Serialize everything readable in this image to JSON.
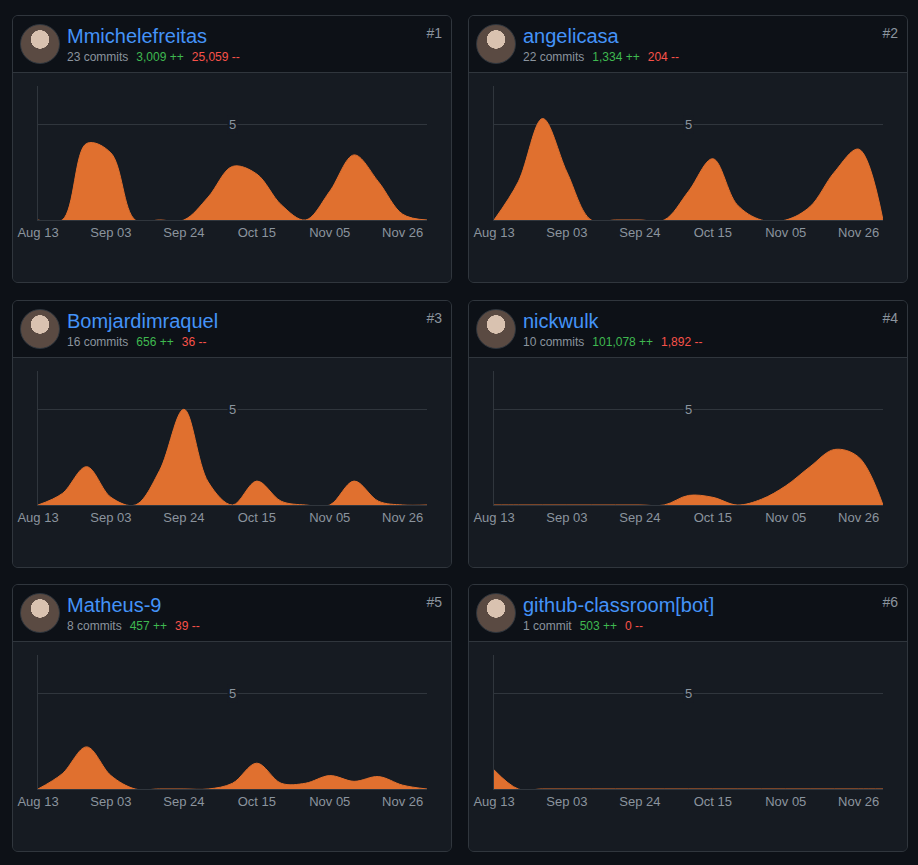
{
  "chart_data": [
    {
      "type": "area",
      "title": "Mmichelefreitas",
      "rank": "#1",
      "commits": "23 commits",
      "additions": "3,009 ++",
      "deletions": "25,059 --",
      "categories": [
        "Aug 13",
        null,
        null,
        "Sep 03",
        null,
        null,
        "Sep 24",
        null,
        null,
        "Oct 15",
        null,
        null,
        "Nov 05",
        null,
        null,
        "Nov 26",
        null
      ],
      "values": [
        0,
        0,
        4,
        3.5,
        0,
        0,
        0,
        1.2,
        2.8,
        2.4,
        0.8,
        0,
        1.5,
        3.4,
        2,
        0.3,
        0
      ],
      "color": "#e0702f",
      "ylim": [
        0,
        7
      ],
      "yticks": [
        5
      ],
      "grid": true
    },
    {
      "type": "area",
      "title": "angelicasa",
      "rank": "#2",
      "commits": "22 commits",
      "additions": "1,334 ++",
      "deletions": "204 --",
      "categories": [
        "Aug 13",
        null,
        null,
        "Sep 03",
        null,
        null,
        "Sep 24",
        null,
        null,
        "Oct 15",
        null,
        null,
        "Nov 05",
        null,
        null,
        "Nov 26",
        null
      ],
      "values": [
        0,
        2,
        5.3,
        2.5,
        0,
        0,
        0,
        0,
        1.5,
        3.2,
        0.8,
        0,
        0,
        0.7,
        2.5,
        3.7,
        0
      ],
      "color": "#e0702f",
      "ylim": [
        0,
        7
      ],
      "yticks": [
        5
      ],
      "grid": true
    },
    {
      "type": "area",
      "title": "Bomjardimraquel",
      "rank": "#3",
      "commits": "16 commits",
      "additions": "656 ++",
      "deletions": "36 --",
      "categories": [
        "Aug 13",
        null,
        null,
        "Sep 03",
        null,
        null,
        "Sep 24",
        null,
        null,
        "Oct 15",
        null,
        null,
        "Nov 05",
        null,
        null,
        "Nov 26",
        null
      ],
      "values": [
        0,
        0.6,
        2,
        0.4,
        0,
        1.8,
        5,
        1.2,
        0,
        1.25,
        0.2,
        0,
        0,
        1.25,
        0.2,
        0,
        0
      ],
      "color": "#e0702f",
      "ylim": [
        0,
        7
      ],
      "yticks": [
        5
      ],
      "grid": true
    },
    {
      "type": "area",
      "title": "nickwulk",
      "rank": "#4",
      "commits": "10 commits",
      "additions": "101,078 ++",
      "deletions": "1,892 --",
      "categories": [
        "Aug 13",
        null,
        null,
        "Sep 03",
        null,
        null,
        "Sep 24",
        null,
        null,
        "Oct 15",
        null,
        null,
        "Nov 05",
        null,
        null,
        "Nov 26",
        null
      ],
      "values": [
        0,
        0,
        0,
        0,
        0,
        0,
        0,
        0,
        0.5,
        0.4,
        0,
        0.3,
        1,
        2,
        2.9,
        2.5,
        0
      ],
      "color": "#e0702f",
      "ylim": [
        0,
        7
      ],
      "yticks": [
        5
      ],
      "grid": true
    },
    {
      "type": "area",
      "title": "Matheus-9",
      "rank": "#5",
      "commits": "8 commits",
      "additions": "457 ++",
      "deletions": "39 --",
      "categories": [
        "Aug 13",
        null,
        null,
        "Sep 03",
        null,
        null,
        "Sep 24",
        null,
        null,
        "Oct 15",
        null,
        null,
        "Nov 05",
        null,
        null,
        "Nov 26",
        null
      ],
      "values": [
        0,
        0.8,
        2.2,
        0.7,
        0,
        0,
        0,
        0,
        0.3,
        1.35,
        0.3,
        0.3,
        0.7,
        0.4,
        0.65,
        0.2,
        0
      ],
      "color": "#e0702f",
      "ylim": [
        0,
        7
      ],
      "yticks": [
        5
      ],
      "grid": true
    },
    {
      "type": "area",
      "title": "github-classroom[bot]",
      "rank": "#6",
      "commits": "1 commit",
      "additions": "503 ++",
      "deletions": "0 --",
      "categories": [
        "Aug 13",
        null,
        null,
        "Sep 03",
        null,
        null,
        "Sep 24",
        null,
        null,
        "Oct 15",
        null,
        null,
        "Nov 05",
        null,
        null,
        "Nov 26",
        null
      ],
      "values": [
        1,
        0,
        0,
        0,
        0,
        0,
        0,
        0,
        0,
        0,
        0,
        0,
        0,
        0,
        0,
        0,
        0
      ],
      "color": "#e0702f",
      "ylim": [
        0,
        7
      ],
      "yticks": [
        5
      ],
      "grid": true
    }
  ]
}
